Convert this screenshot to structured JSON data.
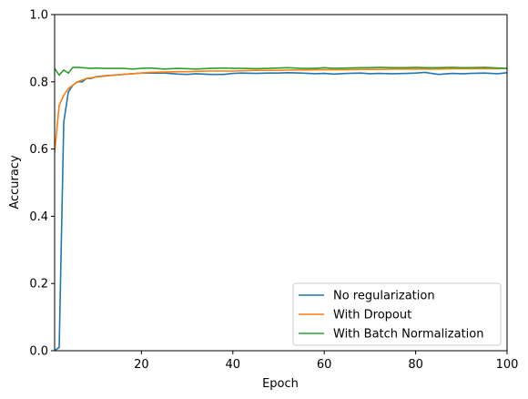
{
  "chart_data": {
    "type": "line",
    "title": "",
    "xlabel": "Epoch",
    "ylabel": "Accuracy",
    "xlim": [
      1,
      100
    ],
    "ylim": [
      0.0,
      1.0
    ],
    "xticks": [
      20,
      40,
      60,
      80,
      100
    ],
    "xtick_labels": [
      "20",
      "40",
      "60",
      "80",
      "100"
    ],
    "yticks": [
      0.0,
      0.2,
      0.4,
      0.6,
      0.8,
      1.0
    ],
    "ytick_labels": [
      "0.0",
      "0.2",
      "0.4",
      "0.6",
      "0.8",
      "1.0"
    ],
    "grid": false,
    "legend_position": "lower-right",
    "series": [
      {
        "name": "No regularization",
        "color": "#1f77b4",
        "x": [
          1,
          2,
          3,
          4,
          5,
          6,
          7,
          8,
          9,
          10,
          12,
          14,
          16,
          18,
          20,
          22,
          25,
          28,
          30,
          32,
          35,
          38,
          40,
          42,
          45,
          48,
          50,
          52,
          55,
          58,
          60,
          62,
          65,
          68,
          70,
          72,
          75,
          78,
          80,
          82,
          85,
          88,
          90,
          92,
          95,
          98,
          100
        ],
        "y": [
          0.0,
          0.01,
          0.68,
          0.77,
          0.79,
          0.8,
          0.8,
          0.81,
          0.81,
          0.815,
          0.818,
          0.82,
          0.822,
          0.824,
          0.826,
          0.826,
          0.826,
          0.823,
          0.822,
          0.824,
          0.822,
          0.822,
          0.825,
          0.826,
          0.825,
          0.826,
          0.826,
          0.827,
          0.826,
          0.824,
          0.825,
          0.823,
          0.825,
          0.826,
          0.824,
          0.825,
          0.824,
          0.825,
          0.826,
          0.828,
          0.822,
          0.825,
          0.824,
          0.825,
          0.826,
          0.824,
          0.827
        ]
      },
      {
        "name": "With Dropout",
        "color": "#ff7f0e",
        "x": [
          1,
          2,
          3,
          4,
          5,
          6,
          7,
          8,
          9,
          10,
          12,
          14,
          16,
          18,
          20,
          22,
          25,
          28,
          30,
          32,
          35,
          38,
          40,
          42,
          45,
          48,
          50,
          52,
          55,
          58,
          60,
          62,
          65,
          68,
          70,
          72,
          75,
          78,
          80,
          82,
          85,
          88,
          90,
          92,
          95,
          98,
          100
        ],
        "y": [
          0.59,
          0.73,
          0.76,
          0.78,
          0.79,
          0.8,
          0.805,
          0.81,
          0.812,
          0.814,
          0.817,
          0.82,
          0.822,
          0.824,
          0.826,
          0.828,
          0.829,
          0.83,
          0.83,
          0.831,
          0.832,
          0.832,
          0.832,
          0.833,
          0.834,
          0.834,
          0.834,
          0.835,
          0.835,
          0.836,
          0.836,
          0.836,
          0.836,
          0.837,
          0.837,
          0.837,
          0.838,
          0.838,
          0.838,
          0.838,
          0.838,
          0.839,
          0.839,
          0.839,
          0.839,
          0.839,
          0.84
        ]
      },
      {
        "name": "With Batch Normalization",
        "color": "#2ca02c",
        "x": [
          1,
          2,
          3,
          4,
          5,
          6,
          7,
          8,
          9,
          10,
          12,
          14,
          16,
          18,
          20,
          22,
          25,
          28,
          30,
          32,
          35,
          38,
          40,
          42,
          45,
          48,
          50,
          52,
          55,
          58,
          60,
          62,
          65,
          68,
          70,
          72,
          75,
          78,
          80,
          82,
          85,
          88,
          90,
          92,
          95,
          98,
          100
        ],
        "y": [
          0.84,
          0.82,
          0.835,
          0.826,
          0.843,
          0.843,
          0.842,
          0.841,
          0.84,
          0.841,
          0.84,
          0.84,
          0.84,
          0.838,
          0.84,
          0.841,
          0.838,
          0.84,
          0.839,
          0.838,
          0.84,
          0.841,
          0.84,
          0.84,
          0.839,
          0.84,
          0.841,
          0.842,
          0.84,
          0.84,
          0.842,
          0.84,
          0.841,
          0.842,
          0.842,
          0.843,
          0.842,
          0.842,
          0.843,
          0.842,
          0.842,
          0.843,
          0.842,
          0.842,
          0.843,
          0.841,
          0.84
        ]
      }
    ]
  }
}
